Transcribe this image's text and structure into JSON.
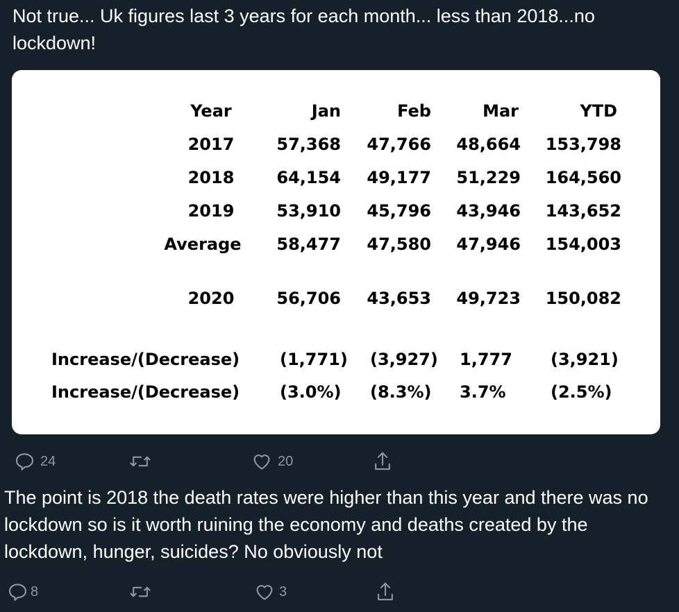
{
  "tweet1": {
    "text": "Not true... Uk figures last 3 years for each month... less than 2018...no lockdown!",
    "table": {
      "headers": [
        "Year",
        "Jan",
        "Feb",
        "Mar",
        "YTD"
      ],
      "rows": [
        [
          "2017",
          "57,368",
          "47,766",
          "48,664",
          "153,798"
        ],
        [
          "2018",
          "64,154",
          "49,177",
          "51,229",
          "164,560"
        ],
        [
          "2019",
          "53,910",
          "45,796",
          "43,946",
          "143,652"
        ],
        [
          "Average",
          "58,477",
          "47,580",
          "47,946",
          "154,003"
        ],
        [
          "2020",
          "56,706",
          "43,653",
          "49,723",
          "150,082"
        ],
        [
          "Increase/(Decrease)",
          "(1,771)",
          "(3,927)",
          "1,777",
          "(3,921)"
        ],
        [
          "Increase/(Decrease)",
          "(3.0%)",
          "(8.3%)",
          "3.7%",
          "(2.5%)"
        ]
      ]
    },
    "actions": {
      "replies": "24",
      "retweets": "",
      "likes": "20"
    }
  },
  "tweet2": {
    "text": "The point is 2018 the death rates were higher than this year and there was no lockdown so is it worth ruining the economy and deaths created by the lockdown, hunger, suicides? No obviously not",
    "actions": {
      "replies": "8",
      "retweets": "",
      "likes": "3"
    }
  },
  "icons": {
    "reply": "reply-icon",
    "retweet": "retweet-icon",
    "like": "like-icon",
    "share": "share-icon"
  },
  "colors": {
    "background": "#15202b",
    "text": "#ffffff",
    "muted": "#8899a6",
    "card": "#ffffff"
  }
}
